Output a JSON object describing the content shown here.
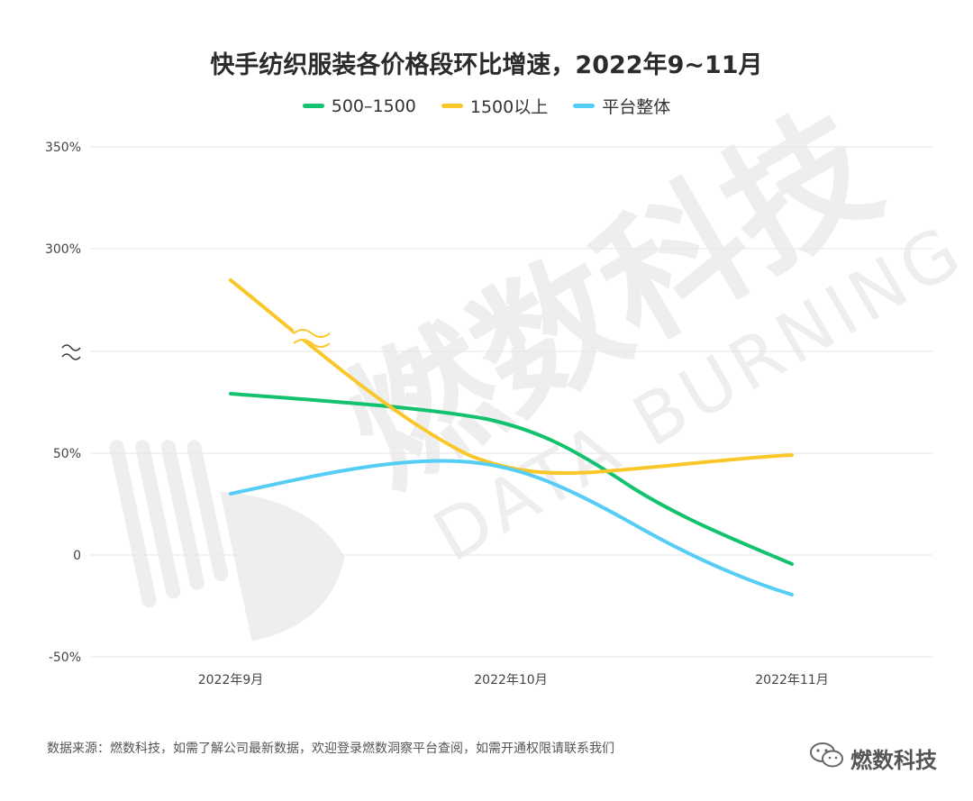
{
  "colors": {
    "green": "#12c26f",
    "yellow": "#fac72b",
    "blue": "#55cdf4",
    "grid": "#e6e6e6",
    "watermark": "#eeeeee"
  },
  "chart_data": {
    "type": "line",
    "title": "快手纺织服装各价格段环比增速，2022年9~11月",
    "categories": [
      "2022年9月",
      "2022年10月",
      "2022年11月"
    ],
    "y_ticks": [
      "350%",
      "300%",
      "",
      "50%",
      "0",
      "-50%"
    ],
    "y_break": true,
    "grid": true,
    "legend_position": "top",
    "series": [
      {
        "name": "500–1500",
        "color": "#12c26f",
        "values": [
          79,
          64,
          -4
        ]
      },
      {
        "name": "1500以上",
        "color": "#fac72b",
        "values": [
          270,
          42,
          49
        ]
      },
      {
        "name": "平台整体",
        "color": "#55cdf4",
        "values": [
          30,
          41,
          -19
        ]
      }
    ]
  },
  "watermark": {
    "main": "燃数科技",
    "sub": "DATA BURNING"
  },
  "footer": {
    "source": "数据来源：燃数科技，如需了解公司最新数据，欢迎登录燃数洞察平台查阅，如需开通权限请联系我们",
    "brand": "燃数科技"
  }
}
